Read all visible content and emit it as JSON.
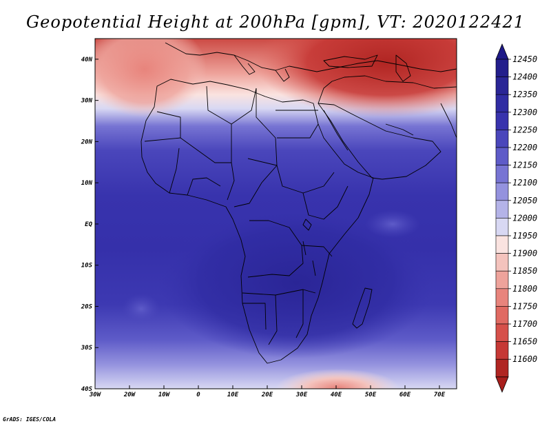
{
  "title": "Geopotential Height at 200hPa [gpm], VT: 2020122421",
  "credit": "GrADS: IGES/COLA",
  "map": {
    "lon_range": [
      -30,
      75
    ],
    "lat_range": [
      -40,
      45
    ],
    "lon_ticks": [
      {
        "lon": -30,
        "label": "30W"
      },
      {
        "lon": -20,
        "label": "20W"
      },
      {
        "lon": -10,
        "label": "10W"
      },
      {
        "lon": 0,
        "label": "0"
      },
      {
        "lon": 10,
        "label": "10E"
      },
      {
        "lon": 20,
        "label": "20E"
      },
      {
        "lon": 30,
        "label": "30E"
      },
      {
        "lon": 40,
        "label": "40E"
      },
      {
        "lon": 50,
        "label": "50E"
      },
      {
        "lon": 60,
        "label": "60E"
      },
      {
        "lon": 70,
        "label": "70E"
      }
    ],
    "lat_ticks": [
      {
        "lat": 40,
        "label": "40N"
      },
      {
        "lat": 30,
        "label": "30N"
      },
      {
        "lat": 20,
        "label": "20N"
      },
      {
        "lat": 10,
        "label": "10N"
      },
      {
        "lat": 0,
        "label": "EQ"
      },
      {
        "lat": -10,
        "label": "10S"
      },
      {
        "lat": -20,
        "label": "20S"
      },
      {
        "lat": -30,
        "label": "30S"
      },
      {
        "lat": -40,
        "label": "40S"
      }
    ]
  },
  "colorbar": {
    "levels": [
      {
        "value": "12450",
        "color": "#231e8c"
      },
      {
        "value": "12400",
        "color": "#2a2596"
      },
      {
        "value": "12350",
        "color": "#302ca3"
      },
      {
        "value": "12300",
        "color": "#3833ad"
      },
      {
        "value": "12250",
        "color": "#4a46bb"
      },
      {
        "value": "12200",
        "color": "#5e5bc8"
      },
      {
        "value": "12150",
        "color": "#7774d3"
      },
      {
        "value": "12100",
        "color": "#9492de"
      },
      {
        "value": "12050",
        "color": "#b4b3e8"
      },
      {
        "value": "12000",
        "color": "#d8d8f3"
      },
      {
        "value": "11950",
        "color": "#fae3e0"
      },
      {
        "value": "11900",
        "color": "#f4c3bd"
      },
      {
        "value": "11850",
        "color": "#eea39b"
      },
      {
        "value": "11800",
        "color": "#e8847c"
      },
      {
        "value": "11750",
        "color": "#e06a62"
      },
      {
        "value": "11700",
        "color": "#d6504a"
      },
      {
        "value": "11650",
        "color": "#c63835"
      },
      {
        "value": "11600",
        "color": "#b02522"
      }
    ],
    "top_arrow_color": "#1e1987",
    "bottom_arrow_color": "#a81e1c"
  }
}
